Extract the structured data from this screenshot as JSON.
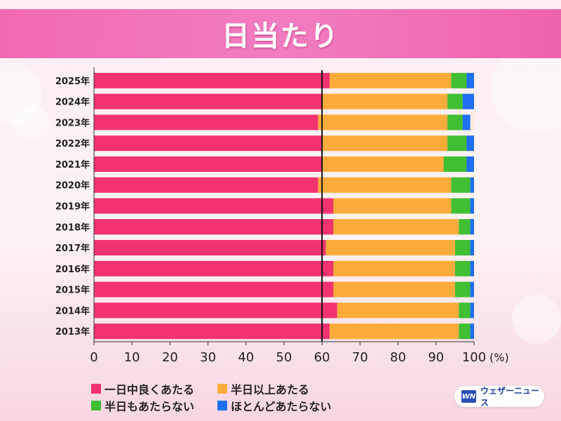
{
  "header": {
    "title": "日当たり"
  },
  "colors": {
    "all_day": "#f2336f",
    "half_day_plus": "#fdac3b",
    "half_day": "#3fbf31",
    "rarely": "#1f6ff0",
    "bar_bg": "#fbe9e2"
  },
  "logo": {
    "mark": "WN",
    "text": "ウェザーニュース"
  },
  "chart_data": {
    "type": "bar",
    "orientation": "horizontal",
    "stacked": true,
    "categories": [
      "2025年",
      "2024年",
      "2023年",
      "2022年",
      "2021年",
      "2020年",
      "2019年",
      "2018年",
      "2017年",
      "2016年",
      "2015年",
      "2014年",
      "2013年"
    ],
    "series": [
      {
        "name": "一日中良くあたる",
        "color": "#f2336f",
        "values": [
          62,
          60,
          59,
          60,
          60,
          59,
          63,
          63,
          61,
          63,
          63,
          64,
          62
        ]
      },
      {
        "name": "半日以上あたる",
        "color": "#fdac3b",
        "values": [
          32,
          33,
          34,
          33,
          32,
          35,
          31,
          33,
          34,
          32,
          32,
          32,
          34
        ]
      },
      {
        "name": "半日もあたらない",
        "color": "#3fbf31",
        "values": [
          4,
          4,
          4,
          5,
          6,
          5,
          5,
          3,
          4,
          4,
          4,
          3,
          3
        ]
      },
      {
        "name": "ほとんどあたらない",
        "color": "#1f6ff0",
        "values": [
          2,
          3,
          2,
          2,
          2,
          1,
          1,
          1,
          1,
          1,
          1,
          1,
          1
        ]
      }
    ],
    "xlim": [
      0,
      100
    ],
    "xticks": [
      "0",
      "10",
      "20",
      "30",
      "40",
      "50",
      "60",
      "70",
      "80",
      "90",
      "100"
    ],
    "xunit": "(%)",
    "reference_line": 60,
    "legend_position": "bottom-left"
  }
}
